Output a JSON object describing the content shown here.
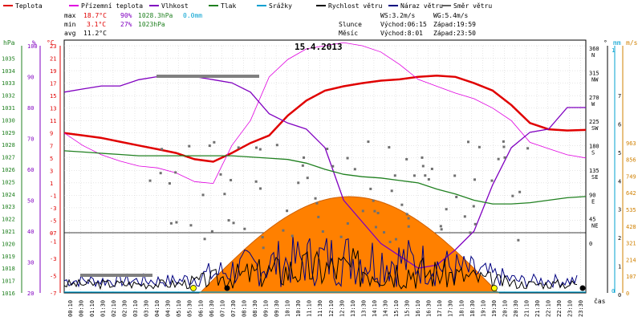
{
  "legend": [
    {
      "label": "Teplota",
      "color": "#e00000"
    },
    {
      "label": "Přízemní teplota",
      "color": "#e000e0"
    },
    {
      "label": "Vlhkost",
      "color": "#8000c0"
    },
    {
      "label": "Tlak",
      "color": "#208020"
    },
    {
      "label": "Srážky",
      "color": "#00a0d0"
    },
    {
      "label": "Rychlost větru",
      "color": "#000000"
    },
    {
      "label": "Náraz větru",
      "color": "#000080"
    },
    {
      "label": "Směr větru",
      "color": "#606060"
    }
  ],
  "stats": {
    "max_label": "max",
    "min_label": "min",
    "avg_label": "avg",
    "max_temp": "18.7°C",
    "max_hum": "90%",
    "max_press": "1028.3hPa",
    "max_rain": "0.0mm",
    "min_temp": "3.1°C",
    "min_hum": "27%",
    "min_press": "1023hPa",
    "avg_temp": "11.2°C"
  },
  "wind_info": {
    "ws": "WS:3.2m/s",
    "wg": "WG:5.4m/s"
  },
  "sun_info": {
    "label": "Slunce",
    "rise": "Východ:06:15",
    "set": "Západ:19:59"
  },
  "moon_info": {
    "label": "Měsíc",
    "rise": "Východ:8:01",
    "set": "Západ:23:50"
  },
  "date_title": "15.4.2013",
  "axis_titles": {
    "hpa": "hPa",
    "pct": "%",
    "degc": "°C",
    "deg": "°",
    "mm": "mm",
    "ms": "m/s",
    "time": "čas"
  },
  "chart_data": {
    "type": "line",
    "title": "15.4.2013",
    "x_ticks": [
      "00:10",
      "00:30",
      "01:10",
      "01:30",
      "02:10",
      "02:30",
      "03:10",
      "03:30",
      "04:10",
      "04:30",
      "05:10",
      "05:30",
      "06:10",
      "06:30",
      "07:10",
      "07:30",
      "08:10",
      "08:30",
      "09:10",
      "09:30",
      "10:10",
      "10:30",
      "11:10",
      "11:30",
      "12:10",
      "12:30",
      "13:10",
      "13:30",
      "14:10",
      "14:30",
      "15:10",
      "15:30",
      "16:10",
      "16:30",
      "17:10",
      "17:30",
      "18:10",
      "18:30",
      "19:10",
      "19:30",
      "20:10",
      "20:30",
      "21:10",
      "21:30",
      "22:10",
      "22:30",
      "23:10",
      "23:30"
    ],
    "axes": {
      "pressure_hpa": {
        "range": [
          1016,
          1036
        ],
        "ticks": [
          1035,
          1034,
          1033,
          1032,
          1031,
          1030,
          1029,
          1028,
          1027,
          1026,
          1025,
          1024,
          1023,
          1022,
          1021,
          1020,
          1019,
          1018,
          1017,
          1016
        ]
      },
      "humidity_pct": {
        "range": [
          20,
          100
        ],
        "ticks": [
          100,
          90,
          80,
          70,
          60,
          50,
          40,
          30,
          20
        ]
      },
      "temp_c": {
        "range": [
          -7,
          23
        ],
        "ticks": [
          23,
          21,
          19,
          17,
          15,
          13,
          11,
          9,
          7,
          5,
          3,
          1,
          -1,
          -3,
          -5,
          -7
        ],
        "lower_ticks": [
          0,
          -1,
          -3,
          -5,
          -7
        ]
      },
      "wind_dir_deg": {
        "ticks": [
          {
            "v": "360",
            "d": "N"
          },
          {
            "v": "315",
            "d": "NW"
          },
          {
            "v": "270",
            "d": "W"
          },
          {
            "v": "225",
            "d": "SW"
          },
          {
            "v": "180",
            "d": "S"
          },
          {
            "v": "135",
            "d": "SE"
          },
          {
            "v": "90",
            "d": "E"
          },
          {
            "v": "45",
            "d": "NE"
          },
          {
            "v": "0",
            "d": ""
          }
        ]
      },
      "rain_mm": {
        "range": [
          0,
          1
        ],
        "ticks": [
          1,
          0
        ]
      },
      "wind_ms": {
        "range": [
          0,
          7
        ],
        "ticks": [
          7,
          6,
          5,
          4,
          3,
          2,
          1,
          0
        ]
      },
      "radiation": {
        "range": [
          0,
          1070
        ],
        "ticks": [
          963,
          856,
          749,
          642,
          535,
          428,
          321,
          214,
          107,
          0
        ]
      }
    },
    "series": [
      {
        "name": "Teplota",
        "axis": "temp_c",
        "points": [
          [
            0,
            9
          ],
          [
            1,
            8.6
          ],
          [
            2,
            8.2
          ],
          [
            3,
            7.6
          ],
          [
            4,
            7
          ],
          [
            5,
            6.4
          ],
          [
            6,
            5.8
          ],
          [
            7,
            4.8
          ],
          [
            8,
            4.4
          ],
          [
            9,
            5.8
          ],
          [
            10,
            7.4
          ],
          [
            11,
            8.6
          ],
          [
            12,
            11.8
          ],
          [
            13,
            14.2
          ],
          [
            14,
            15.8
          ],
          [
            15,
            16.5
          ],
          [
            16,
            17
          ],
          [
            17,
            17.4
          ],
          [
            18,
            17.6
          ],
          [
            19,
            18
          ],
          [
            20,
            18.2
          ],
          [
            21,
            18
          ],
          [
            22,
            17
          ],
          [
            23,
            15.8
          ],
          [
            24,
            13.5
          ],
          [
            25,
            10.6
          ],
          [
            26,
            9.6
          ],
          [
            27,
            9.4
          ],
          [
            28,
            9.5
          ]
        ]
      },
      {
        "name": "Přízemní teplota",
        "axis": "temp_c",
        "points": [
          [
            0,
            9
          ],
          [
            1,
            7
          ],
          [
            2,
            5.5
          ],
          [
            3,
            4.5
          ],
          [
            4,
            3.7
          ],
          [
            5,
            3.4
          ],
          [
            6,
            2.6
          ],
          [
            7,
            1.2
          ],
          [
            8,
            0.9
          ],
          [
            9,
            7
          ],
          [
            10,
            11
          ],
          [
            11,
            18
          ],
          [
            12,
            20.8
          ],
          [
            13,
            22.5
          ],
          [
            14,
            23
          ],
          [
            15,
            23.5
          ],
          [
            16,
            23
          ],
          [
            17,
            22
          ],
          [
            18,
            20
          ],
          [
            19,
            17.6
          ],
          [
            20,
            16.5
          ],
          [
            21,
            15.4
          ],
          [
            22,
            14.5
          ],
          [
            23,
            13
          ],
          [
            24,
            11
          ],
          [
            25,
            7.5
          ],
          [
            26,
            6.5
          ],
          [
            27,
            5.5
          ],
          [
            28,
            5
          ]
        ]
      },
      {
        "name": "Vlhkost",
        "axis": "humidity_pct",
        "points": [
          [
            0,
            85
          ],
          [
            1,
            86
          ],
          [
            2,
            87
          ],
          [
            3,
            87
          ],
          [
            4,
            89
          ],
          [
            5,
            90
          ],
          [
            6,
            90
          ],
          [
            7,
            90
          ],
          [
            8,
            89
          ],
          [
            9,
            88
          ],
          [
            10,
            85
          ],
          [
            11,
            78
          ],
          [
            12,
            75
          ],
          [
            13,
            73
          ],
          [
            14,
            67
          ],
          [
            15,
            50
          ],
          [
            16,
            43
          ],
          [
            17,
            36
          ],
          [
            18,
            32
          ],
          [
            19,
            28
          ],
          [
            20,
            29
          ],
          [
            21,
            34
          ],
          [
            22,
            40
          ],
          [
            23,
            55
          ],
          [
            24,
            67
          ],
          [
            25,
            72
          ],
          [
            26,
            73
          ],
          [
            27,
            80
          ],
          [
            28,
            80
          ]
        ]
      },
      {
        "name": "Tlak",
        "axis": "pressure_hpa",
        "points": [
          [
            0,
            1027.5
          ],
          [
            1,
            1027.4
          ],
          [
            2,
            1027.3
          ],
          [
            3,
            1027.2
          ],
          [
            4,
            1027.1
          ],
          [
            5,
            1027.1
          ],
          [
            6,
            1027.1
          ],
          [
            7,
            1027.1
          ],
          [
            8,
            1027.1
          ],
          [
            9,
            1027.1
          ],
          [
            10,
            1027
          ],
          [
            11,
            1026.9
          ],
          [
            12,
            1026.8
          ],
          [
            13,
            1026.5
          ],
          [
            14,
            1026
          ],
          [
            15,
            1025.6
          ],
          [
            16,
            1025.4
          ],
          [
            17,
            1025.3
          ],
          [
            18,
            1025.1
          ],
          [
            19,
            1024.9
          ],
          [
            20,
            1024.4
          ],
          [
            21,
            1024
          ],
          [
            22,
            1023.5
          ],
          [
            23,
            1023.2
          ],
          [
            24,
            1023.2
          ],
          [
            25,
            1023.3
          ],
          [
            26,
            1023.5
          ],
          [
            27,
            1023.7
          ],
          [
            28,
            1023.8
          ]
        ]
      },
      {
        "name": "Srážky",
        "axis": "rain_mm",
        "points": [
          [
            0,
            0
          ],
          [
            28,
            0
          ]
        ]
      }
    ]
  }
}
